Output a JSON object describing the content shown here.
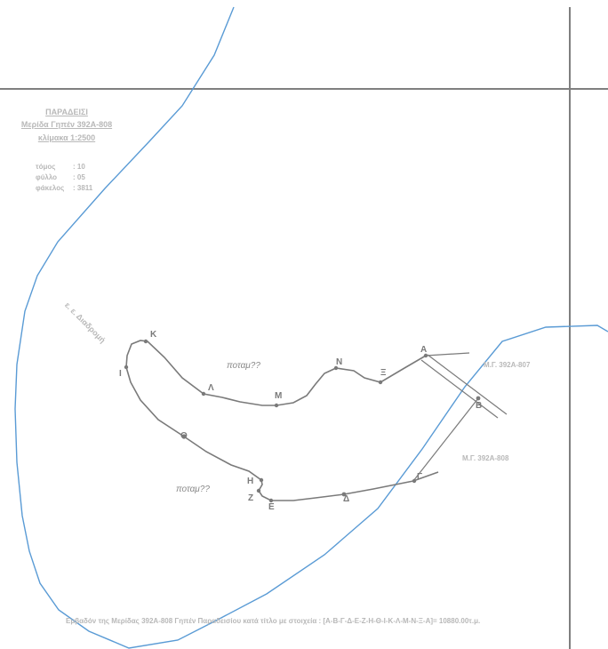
{
  "header": {
    "title": "ΠΑΡΑΔΕΙΣΙ",
    "subtitle": "Μερίδα Γηπέν 392Α-808",
    "scale": "κλίμακα 1:2500"
  },
  "meta": [
    {
      "key": "τόμος",
      "value": ": 10"
    },
    {
      "key": "φύλλο",
      "value": ": 05"
    },
    {
      "key": "φάκελος",
      "value": ": 3811"
    }
  ],
  "road_label": "ε. ε. Διαδρομή",
  "river_label": "ποταμ??",
  "neighbors": {
    "north": "Μ.Γ. 392Α-807",
    "east": "Μ.Γ. 392Α-808"
  },
  "vertices": [
    "Α",
    "Β",
    "Γ",
    "Δ",
    "Ε",
    "Ζ",
    "Η",
    "Θ",
    "Ι",
    "Κ",
    "Λ",
    "Μ",
    "Ν",
    "Ξ"
  ],
  "footer": "Εμβαδόν της Μερίδας 392Α-808 Γηπέν Παραδεισίου κατά τίτλο με στοιχεία : [Α-Β-Γ-Δ-Ε-Ζ-Η-Θ-Ι-Κ-Λ-Μ-Ν-Ξ-Α]= 10880.00τ.μ.",
  "colors": {
    "grid": "#7f7f7f",
    "blue_boundary": "#5a9bd5",
    "parcel_line": "#7a7a7a",
    "label_text": "#b8b8b8"
  }
}
